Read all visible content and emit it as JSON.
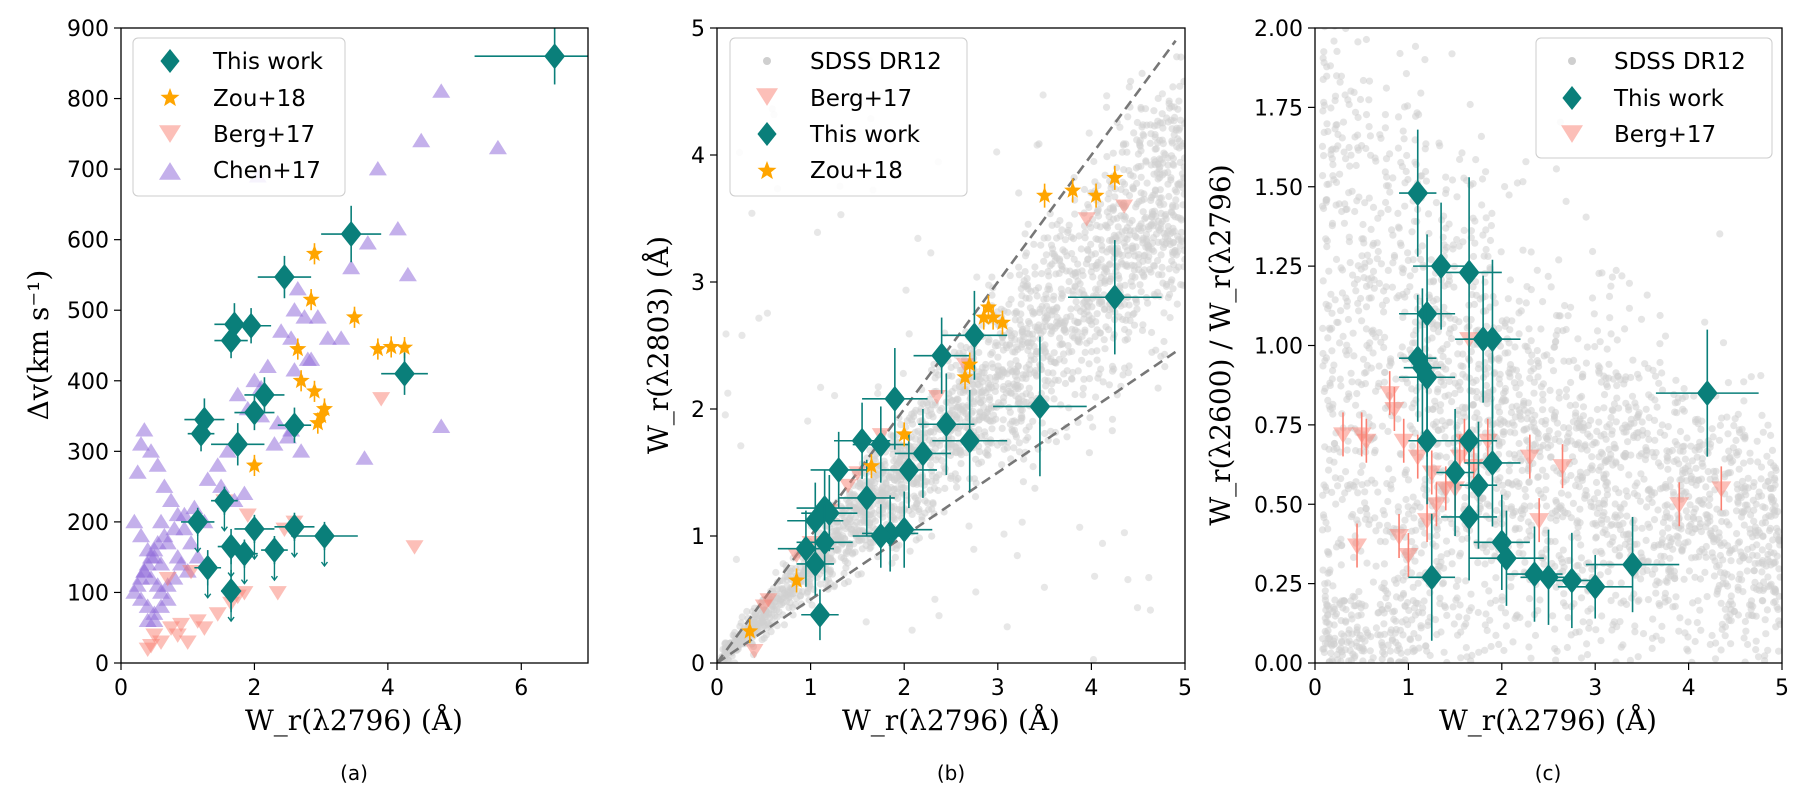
{
  "colors": {
    "this_work": "#0a7f7a",
    "zou18": "#ffa500",
    "berg17": "#fa8072",
    "chen17": "#9370db",
    "sdss": "#cfcfcf",
    "guide": "#777777"
  },
  "chart_data": [
    {
      "type": "scatter",
      "panel_label": "(a)",
      "xlabel": "W_r(λ2796) (Å)",
      "ylabel": "Δv(km s⁻¹)",
      "xlim": [
        0,
        7
      ],
      "ylim": [
        0,
        900
      ],
      "xticks": [
        0,
        2,
        4,
        6
      ],
      "yticks": [
        0,
        100,
        200,
        300,
        400,
        500,
        600,
        700,
        800,
        900
      ],
      "legend": {
        "position": "top-left",
        "entries": [
          "This work",
          "Zou+18",
          "Berg+17",
          "Chen+17"
        ]
      },
      "series": [
        {
          "name": "This work",
          "marker": "diamond",
          "color_key": "this_work",
          "x": [
            6.5,
            3.45,
            2.45,
            1.7,
            1.95,
            1.65,
            4.25,
            2.15,
            2.6,
            1.25,
            1.75,
            2.0,
            1.2,
            1.55,
            1.65,
            2.0,
            2.6,
            3.05,
            1.85,
            2.3,
            1.3,
            1.65,
            1.15
          ],
          "y": [
            860,
            608,
            547,
            480,
            478,
            457,
            410,
            380,
            337,
            345,
            310,
            355,
            325,
            230,
            165,
            190,
            193,
            180,
            155,
            160,
            135,
            102,
            200
          ],
          "xerr": [
            1.2,
            0.45,
            0.4,
            0.3,
            0.3,
            0.25,
            0.35,
            0.3,
            0.25,
            0.3,
            0.4,
            0.3,
            0.2,
            0.2,
            0.2,
            0.3,
            0.3,
            0.5,
            0.2,
            0.2,
            0.2,
            0.15,
            0.25
          ],
          "yerr": [
            40,
            40,
            30,
            30,
            25,
            25,
            30,
            25,
            25,
            30,
            30,
            25,
            25,
            20,
            25,
            20,
            20,
            20,
            20,
            20,
            25,
            30,
            20
          ]
        },
        {
          "name": "Zou+18",
          "marker": "star",
          "color_key": "zou18",
          "x": [
            2.9,
            2.85,
            2.65,
            3.5,
            3.85,
            4.05,
            4.25,
            2.9,
            3.05,
            2.95,
            3.0,
            2.7,
            2.0
          ],
          "y": [
            580,
            515,
            445,
            490,
            445,
            448,
            447,
            385,
            360,
            340,
            350,
            400,
            280
          ],
          "err": [
            15,
            15,
            15,
            15,
            15,
            15,
            15,
            15,
            15,
            15,
            15,
            15,
            15
          ]
        },
        {
          "name": "Berg+17",
          "marker": "triangle-down",
          "color_key": "berg17",
          "x": [
            0.4,
            0.5,
            0.6,
            0.75,
            0.9,
            1.0,
            1.25,
            1.45,
            1.65,
            1.75,
            1.85,
            2.35,
            2.6,
            3.9,
            4.4,
            0.45,
            0.85,
            1.15,
            1.55,
            2.45,
            1.9,
            1.05,
            0.7
          ],
          "y": [
            20,
            40,
            30,
            50,
            55,
            30,
            50,
            70,
            85,
            95,
            100,
            100,
            200,
            375,
            165,
            25,
            40,
            60,
            230,
            190,
            210,
            130,
            120
          ]
        },
        {
          "name": "Chen+17",
          "marker": "triangle-up",
          "color_key": "chen17",
          "x": [
            4.8,
            5.65,
            4.5,
            3.85,
            4.15,
            4.3,
            3.45,
            3.65,
            2.05,
            2.65,
            2.4,
            2.75,
            2.55,
            2.95,
            3.1,
            3.3,
            2.85,
            2.6,
            2.2,
            2.0,
            1.9,
            1.75,
            2.1,
            2.35,
            2.5,
            1.6,
            1.45,
            1.3,
            1.5,
            1.7,
            1.85,
            2.7,
            2.55,
            1.1,
            1.25,
            0.95,
            0.8,
            0.65,
            0.55,
            0.5,
            0.45,
            0.4,
            0.35,
            0.3,
            0.25,
            0.2,
            0.6,
            0.7,
            0.85,
            0.9,
            1.0,
            0.3,
            0.35,
            0.45,
            0.55,
            0.65,
            0.75,
            0.85,
            0.95,
            1.05,
            1.15,
            0.25,
            0.3,
            0.4,
            0.5,
            0.6,
            0.7,
            0.8,
            0.4,
            0.5,
            0.6,
            0.7,
            0.2,
            0.3,
            0.4,
            0.5,
            0.6,
            0.35,
            0.45,
            0.55,
            4.8,
            3.7,
            2.6,
            2.8,
            2.3,
            2.1
          ],
          "y": [
            810,
            730,
            740,
            700,
            615,
            550,
            560,
            290,
            690,
            530,
            470,
            490,
            460,
            490,
            460,
            460,
            430,
            415,
            420,
            400,
            360,
            380,
            390,
            340,
            320,
            300,
            280,
            260,
            250,
            230,
            240,
            300,
            330,
            220,
            200,
            210,
            190,
            180,
            170,
            160,
            150,
            140,
            130,
            120,
            110,
            100,
            200,
            170,
            150,
            140,
            130,
            310,
            330,
            300,
            280,
            250,
            230,
            210,
            190,
            170,
            150,
            270,
            90,
            80,
            70,
            100,
            110,
            120,
            60,
            60,
            80,
            90,
            200,
            180,
            160,
            150,
            140,
            130,
            120,
            110,
            335,
            595,
            500,
            430,
            310,
            350
          ]
        }
      ]
    },
    {
      "type": "scatter",
      "panel_label": "(b)",
      "xlabel": "W_r(λ2796) (Å)",
      "ylabel": "W_r(λ2803) (Å)",
      "xlim": [
        0,
        5
      ],
      "ylim": [
        0,
        5
      ],
      "xticks": [
        0,
        1,
        2,
        3,
        4,
        5
      ],
      "yticks": [
        0,
        1,
        2,
        3,
        4,
        5
      ],
      "guide_lines": [
        {
          "slope": 1.0,
          "style": "dashed"
        },
        {
          "slope": 0.5,
          "style": "dashed"
        }
      ],
      "legend": {
        "position": "top-left",
        "entries": [
          "SDSS DR12",
          "Berg+17",
          "This work",
          "Zou+18"
        ]
      },
      "series": [
        {
          "name": "SDSS DR12",
          "marker": "circle",
          "color_key": "sdss",
          "note": "dense background cloud between the dashed lines"
        },
        {
          "name": "Berg+17",
          "marker": "triangle-down",
          "color_key": "berg17",
          "x": [
            0.4,
            0.55,
            0.85,
            1.2,
            1.5,
            1.75,
            2.35,
            2.65,
            3.95,
            4.35,
            0.5,
            1.0,
            1.4
          ],
          "y": [
            0.1,
            0.5,
            0.85,
            1.2,
            1.5,
            1.8,
            2.1,
            2.35,
            3.5,
            3.6,
            0.45,
            0.95,
            1.4
          ]
        },
        {
          "name": "This work",
          "marker": "diamond",
          "color_key": "this_work",
          "x": [
            4.25,
            3.45,
            2.75,
            2.4,
            1.9,
            2.45,
            2.2,
            2.05,
            1.55,
            1.75,
            1.3,
            1.6,
            1.15,
            1.2,
            1.05,
            1.15,
            1.05,
            0.95,
            1.1,
            1.85,
            2.0,
            1.75,
            2.7
          ],
          "y": [
            2.88,
            2.02,
            2.58,
            2.42,
            2.08,
            1.88,
            1.65,
            1.52,
            1.75,
            1.72,
            1.52,
            1.3,
            1.22,
            1.18,
            1.12,
            0.95,
            0.78,
            0.9,
            0.38,
            1.02,
            1.05,
            1.0,
            1.75
          ],
          "xerr": [
            0.5,
            0.5,
            0.35,
            0.3,
            0.35,
            0.3,
            0.3,
            0.3,
            0.3,
            0.3,
            0.3,
            0.3,
            0.3,
            0.3,
            0.3,
            0.3,
            0.2,
            0.3,
            0.2,
            0.3,
            0.3,
            0.3,
            0.4
          ],
          "yerr": [
            0.45,
            0.55,
            0.35,
            0.3,
            0.4,
            0.4,
            0.35,
            0.3,
            0.3,
            0.3,
            0.3,
            0.3,
            0.3,
            0.3,
            0.3,
            0.3,
            0.25,
            0.3,
            0.2,
            0.3,
            0.3,
            0.25,
            0.4
          ]
        },
        {
          "name": "Zou+18",
          "marker": "star",
          "color_key": "zou18",
          "x": [
            3.5,
            3.8,
            4.05,
            4.25,
            2.9,
            2.85,
            3.05,
            2.95,
            2.7,
            2.65,
            2.0,
            1.65,
            0.85,
            0.35
          ],
          "y": [
            3.68,
            3.72,
            3.68,
            3.82,
            2.8,
            2.72,
            2.68,
            2.72,
            2.35,
            2.25,
            1.8,
            1.55,
            0.65,
            0.25
          ]
        }
      ]
    },
    {
      "type": "scatter",
      "panel_label": "(c)",
      "xlabel": "W_r(λ2796) (Å)",
      "ylabel": "W_r(λ2600) / W_r(λ2796)",
      "xlim": [
        0,
        5
      ],
      "ylim": [
        0,
        2
      ],
      "xticks": [
        0,
        1,
        2,
        3,
        4,
        5
      ],
      "yticks": [
        "0.00",
        "0.25",
        "0.50",
        "0.75",
        "1.00",
        "1.25",
        "1.50",
        "1.75",
        "2.00"
      ],
      "legend": {
        "position": "top-right",
        "entries": [
          "SDSS DR12",
          "This work",
          "Berg+17"
        ]
      },
      "series": [
        {
          "name": "SDSS DR12",
          "marker": "circle",
          "color_key": "sdss",
          "note": "dense background cloud peaking at low W_r"
        },
        {
          "name": "This work",
          "marker": "diamond",
          "color_key": "this_work",
          "x": [
            1.1,
            1.2,
            1.35,
            1.65,
            1.1,
            1.2,
            1.8,
            1.9,
            1.65,
            1.2,
            1.75,
            1.9,
            1.5,
            1.65,
            2.0,
            2.05,
            2.35,
            2.5,
            2.75,
            3.0,
            3.4,
            4.2,
            1.25,
            1.15
          ],
          "y": [
            1.48,
            1.1,
            1.25,
            1.23,
            0.96,
            0.9,
            1.02,
            1.02,
            0.7,
            0.7,
            0.56,
            0.63,
            0.6,
            0.46,
            0.38,
            0.33,
            0.28,
            0.27,
            0.26,
            0.24,
            0.31,
            0.85,
            0.27,
            0.93
          ],
          "xerr": [
            0.2,
            0.3,
            0.3,
            0.35,
            0.2,
            0.3,
            0.3,
            0.3,
            0.3,
            0.2,
            0.2,
            0.3,
            0.2,
            0.3,
            0.3,
            0.4,
            0.3,
            0.3,
            0.3,
            0.4,
            0.5,
            0.55,
            0.25,
            0.2
          ],
          "yerr": [
            0.2,
            0.25,
            0.2,
            0.3,
            0.2,
            0.25,
            0.2,
            0.25,
            0.3,
            0.2,
            0.2,
            0.2,
            0.2,
            0.2,
            0.15,
            0.15,
            0.15,
            0.15,
            0.15,
            0.1,
            0.15,
            0.2,
            0.2,
            0.25
          ]
        },
        {
          "name": "Berg+17",
          "marker": "triangle-down",
          "color_key": "berg17",
          "x": [
            0.3,
            0.5,
            0.55,
            0.8,
            0.85,
            0.9,
            1.0,
            1.1,
            1.25,
            1.4,
            1.5,
            1.6,
            1.7,
            1.85,
            2.3,
            2.4,
            2.65,
            3.9,
            4.35,
            0.45,
            0.95,
            1.55,
            1.65,
            1.3,
            1.2
          ],
          "y": [
            0.72,
            0.72,
            0.7,
            0.85,
            0.8,
            0.4,
            0.34,
            0.65,
            0.6,
            0.55,
            0.55,
            0.7,
            0.62,
            0.7,
            0.65,
            0.45,
            0.62,
            0.5,
            0.55,
            0.37,
            0.7,
            0.65,
            1.02,
            0.5,
            0.45
          ]
        }
      ]
    }
  ]
}
